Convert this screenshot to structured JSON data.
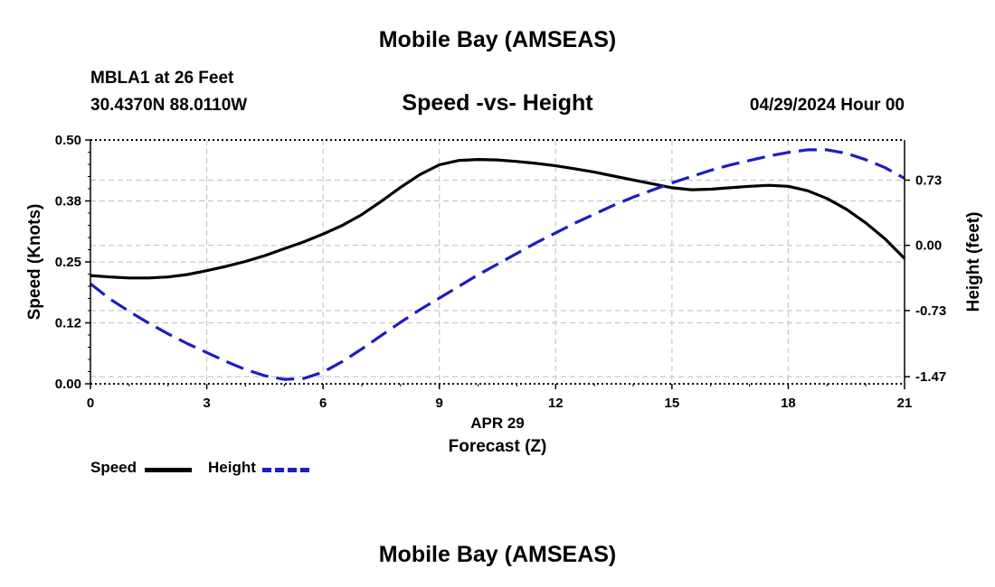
{
  "page": {
    "title": "Mobile Bay (AMSEAS)",
    "station": "MBLA1 at 26 Feet",
    "coords": "30.4370N  88.0110W",
    "date": "04/29/2024 Hour 00",
    "footer_title": "Mobile Bay (AMSEAS)"
  },
  "chart_data": {
    "type": "line",
    "title": "Speed -vs- Height",
    "xlabel": "Forecast (Z)",
    "xlabel_date": "APR 29",
    "ylabel": "Speed (Knots)",
    "y2label": "Height (feet)",
    "xlim": [
      0,
      21
    ],
    "ylim": [
      0,
      0.5
    ],
    "y2lim": [
      -1.55,
      1.18
    ],
    "x_ticks": [
      "0",
      "3",
      "6",
      "9",
      "12",
      "15",
      "18",
      "21"
    ],
    "y_ticks": [
      "0.00",
      "0.12",
      "0.25",
      "0.38",
      "0.50"
    ],
    "y_tick_values": [
      0,
      0.125,
      0.25,
      0.375,
      0.5
    ],
    "y2_ticks": [
      "-1.47",
      "-0.73",
      "0.00",
      "0.73"
    ],
    "y2_tick_values": [
      -1.47,
      -0.73,
      0,
      0.73
    ],
    "grid": true,
    "series": [
      {
        "name": "Speed",
        "axis": "left",
        "color": "#000000",
        "dash": "solid",
        "x": [
          0,
          0.5,
          1,
          1.5,
          2,
          2.5,
          3,
          3.5,
          4,
          4.5,
          5,
          5.5,
          6,
          6.5,
          7,
          7.5,
          8,
          8.5,
          9,
          9.5,
          10,
          10.5,
          11,
          11.5,
          12,
          12.5,
          13,
          13.5,
          14,
          14.5,
          15,
          15.5,
          16,
          16.5,
          17,
          17.5,
          18,
          18.5,
          19,
          19.5,
          20,
          20.5,
          21
        ],
        "values": [
          0.222,
          0.219,
          0.217,
          0.217,
          0.219,
          0.224,
          0.232,
          0.241,
          0.251,
          0.263,
          0.277,
          0.291,
          0.307,
          0.325,
          0.347,
          0.374,
          0.403,
          0.429,
          0.449,
          0.458,
          0.46,
          0.459,
          0.456,
          0.452,
          0.447,
          0.441,
          0.434,
          0.426,
          0.418,
          0.41,
          0.402,
          0.398,
          0.399,
          0.402,
          0.405,
          0.407,
          0.405,
          0.396,
          0.38,
          0.358,
          0.33,
          0.297,
          0.257
        ]
      },
      {
        "name": "Height",
        "axis": "right",
        "color": "#1c1cc8",
        "dash": "dashed",
        "x": [
          0,
          0.5,
          1,
          1.5,
          2,
          2.5,
          3,
          3.5,
          4,
          4.5,
          5,
          5.5,
          6,
          6.5,
          7,
          7.5,
          8,
          8.5,
          9,
          9.5,
          10,
          10.5,
          11,
          11.5,
          12,
          12.5,
          13,
          13.5,
          14,
          14.5,
          15,
          15.5,
          16,
          16.5,
          17,
          17.5,
          18,
          18.5,
          19,
          19.5,
          20,
          20.5,
          21
        ],
        "values": [
          -0.43,
          -0.6,
          -0.74,
          -0.87,
          -0.99,
          -1.1,
          -1.2,
          -1.3,
          -1.39,
          -1.46,
          -1.5,
          -1.49,
          -1.42,
          -1.3,
          -1.16,
          -1.01,
          -0.86,
          -0.72,
          -0.59,
          -0.46,
          -0.33,
          -0.21,
          -0.09,
          0.03,
          0.14,
          0.25,
          0.35,
          0.45,
          0.54,
          0.62,
          0.7,
          0.77,
          0.84,
          0.9,
          0.95,
          1.0,
          1.04,
          1.07,
          1.07,
          1.03,
          0.96,
          0.87,
          0.75
        ]
      }
    ],
    "legend": [
      {
        "label": "Speed",
        "color": "#000000",
        "dash": "solid"
      },
      {
        "label": "Height",
        "color": "#1c1cc8",
        "dash": "dashed"
      }
    ],
    "legend_position": "bottom-left"
  }
}
